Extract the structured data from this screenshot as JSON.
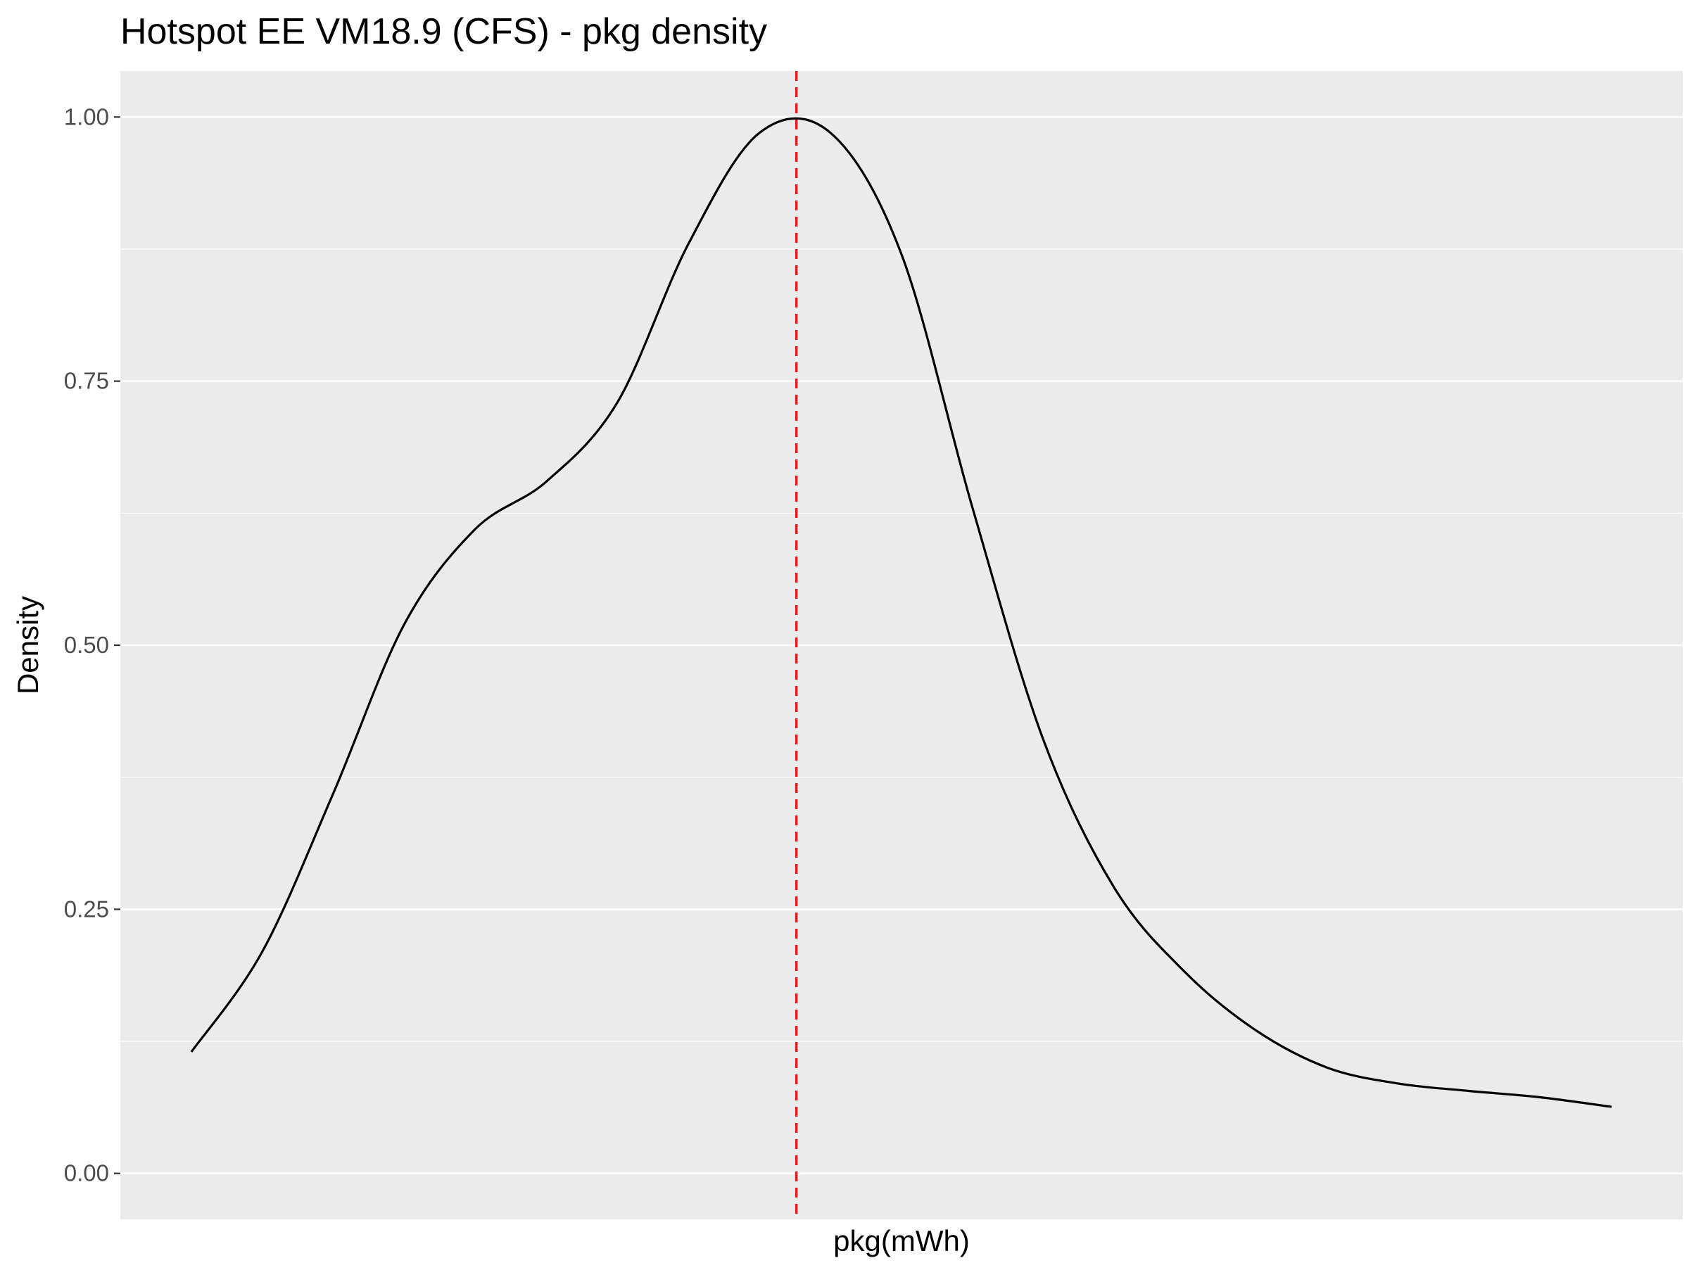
{
  "chart_data": {
    "type": "line",
    "title": "Hotspot EE VM18.9 (CFS) - pkg density",
    "xlabel": "pkg(mWh)",
    "ylabel": "Density",
    "ylim": [
      -0.0435,
      1.0435
    ],
    "xlim": [
      -0.05,
      1.05
    ],
    "x_ticks_shown": false,
    "y_ticks": [
      0.0,
      0.25,
      0.5,
      0.75,
      1.0
    ],
    "y_tick_labels": [
      "0.00",
      "0.25",
      "0.50",
      "0.75",
      "1.00"
    ],
    "grid": true,
    "theme": "ggplot2 gray",
    "colors": {
      "panel_bg": "#ebebeb",
      "grid_major": "#ffffff",
      "curve": "#000000",
      "reference_line": "#e41a1c",
      "tick": "#333333"
    },
    "reference_line": {
      "x": 0.426,
      "style": "dashed"
    },
    "series": [
      {
        "x": [
          0.0,
          0.05,
          0.1,
          0.15,
          0.2,
          0.25,
          0.3,
          0.35,
          0.4,
          0.45,
          0.5,
          0.55,
          0.6,
          0.65,
          0.7,
          0.75,
          0.8,
          0.85,
          0.9,
          0.95,
          1.0
        ],
        "values": [
          0.115,
          0.21,
          0.36,
          0.52,
          0.61,
          0.655,
          0.73,
          0.88,
          0.985,
          0.985,
          0.87,
          0.63,
          0.41,
          0.27,
          0.19,
          0.135,
          0.1,
          0.085,
          0.078,
          0.072,
          0.063
        ]
      }
    ]
  }
}
